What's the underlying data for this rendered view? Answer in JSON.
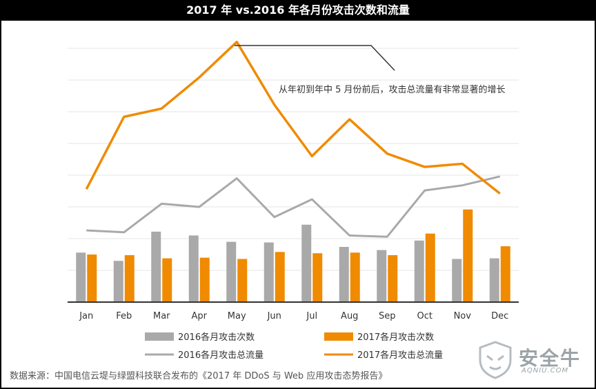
{
  "title": "2017 年 vs.2016 年各月份攻击次数和流量",
  "annotation": "从年初到年中 5 月份前后，攻击总流量有非常显著的增长",
  "source": "数据来源：中国电信云堤与绿盟科技联合发布的《2017 年 DDoS 与 Web 应用攻击态势报告》",
  "brand": {
    "name": "安全牛",
    "sub": "AQNIU.COM"
  },
  "colors": {
    "gray": "#a9a9a9",
    "orange": "#f08a00",
    "axis": "#333333",
    "grid": "#e6e6e6",
    "callout": "#333333"
  },
  "chart_data": {
    "type": "bar",
    "categories": [
      "Jan",
      "Feb",
      "Mar",
      "Apr",
      "May",
      "Jun",
      "Jul",
      "Aug",
      "Sep",
      "Oct",
      "Nov",
      "Dec"
    ],
    "ylim": [
      0,
      8
    ],
    "grid": true,
    "legend_position": "bottom",
    "series": [
      {
        "name": "2016各月攻击次数",
        "type": "bar",
        "color": "#a9a9a9",
        "values": [
          1.56,
          1.3,
          2.22,
          2.1,
          1.9,
          1.88,
          2.44,
          1.74,
          1.64,
          1.94,
          1.36,
          1.38
        ]
      },
      {
        "name": "2017各月攻击次数",
        "type": "bar",
        "color": "#f08a00",
        "values": [
          1.5,
          1.48,
          1.38,
          1.4,
          1.36,
          1.58,
          1.54,
          1.56,
          1.48,
          2.16,
          2.92,
          1.76
        ]
      },
      {
        "name": "2016各月攻击总流量",
        "type": "line",
        "color": "#a9a9a9",
        "values": [
          2.26,
          2.2,
          3.1,
          3.0,
          3.9,
          2.68,
          3.24,
          2.1,
          2.06,
          3.52,
          3.68,
          3.96
        ]
      },
      {
        "name": "2017各月攻击总流量",
        "type": "line",
        "color": "#f08a00",
        "values": [
          3.56,
          5.84,
          6.1,
          7.08,
          8.2,
          6.22,
          4.6,
          5.76,
          4.68,
          4.26,
          4.36,
          3.42
        ]
      }
    ]
  }
}
